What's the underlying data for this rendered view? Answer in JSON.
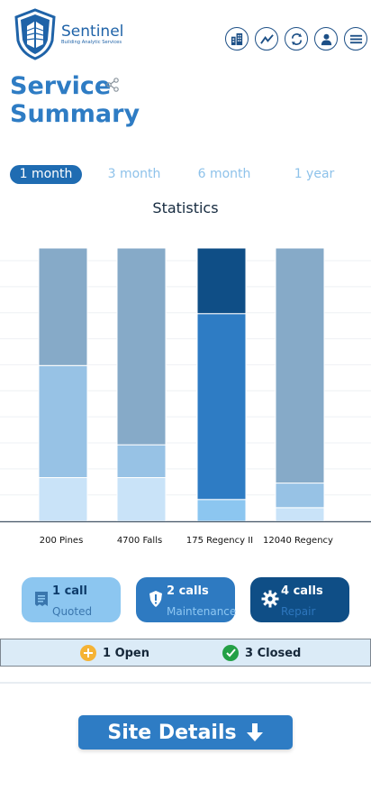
{
  "brand": {
    "name": "Sentinel",
    "tagline": "Building Analytic Services"
  },
  "header_icons": [
    "buildings-icon",
    "trend-icon",
    "refresh-icon",
    "user-icon",
    "menu-icon"
  ],
  "page": {
    "title_line1": "Service",
    "title_line2": "Summary"
  },
  "tabs": [
    {
      "label": "1 month",
      "active": true
    },
    {
      "label": "3 month",
      "active": false
    },
    {
      "label": "6 month",
      "active": false
    },
    {
      "label": "1 year",
      "active": false
    }
  ],
  "stats_title": "Statistics",
  "chart_data": {
    "type": "bar",
    "stacked": true,
    "categories": [
      "200 Pines",
      "4700 Falls",
      "175 Regency II",
      "12040 Regency"
    ],
    "series": [
      {
        "color": "#c9e3f8",
        "values": [
          0.16,
          0.16,
          0.0,
          0.05
        ]
      },
      {
        "color": "#97c2e5",
        "values": [
          0.41,
          0.12,
          0.0,
          0.09
        ]
      },
      {
        "color": "#86aac8",
        "values": [
          0.43,
          0.72,
          0.0,
          0.86
        ]
      },
      {
        "color": "#8cc6f0",
        "values": [
          0.0,
          0.0,
          0.08,
          0.0
        ]
      },
      {
        "color": "#2e7cc4",
        "values": [
          0.0,
          0.0,
          0.68,
          0.0
        ]
      },
      {
        "color": "#0f4e86",
        "values": [
          0.0,
          0.0,
          0.24,
          0.0
        ]
      }
    ],
    "ylim": [
      0,
      1
    ],
    "grid": true
  },
  "calls": [
    {
      "count": "1 call",
      "type": "Quoted",
      "icon": "receipt-icon"
    },
    {
      "count": "2 calls",
      "type": "Maintenance",
      "icon": "shield-alert-icon"
    },
    {
      "count": "4 calls",
      "type": "Repair",
      "icon": "gear-icon"
    }
  ],
  "status": {
    "open": "1 Open",
    "closed": "3 Closed",
    "open_color": "#f5b335",
    "closed_color": "#23a046"
  },
  "site_button": "Site Details"
}
